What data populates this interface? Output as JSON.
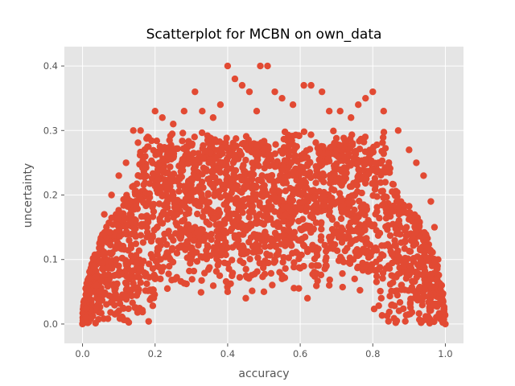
{
  "chart_data": {
    "type": "scatter",
    "title": "Scatterplot for MCBN on own_data",
    "xlabel": "accuracy",
    "ylabel": "uncertainty",
    "xlim": [
      -0.05,
      1.05
    ],
    "ylim": [
      -0.03,
      0.43
    ],
    "xticks": [
      0.0,
      0.2,
      0.4,
      0.6,
      0.8,
      1.0
    ],
    "xtick_labels": [
      "0.0",
      "0.2",
      "0.4",
      "0.6",
      "0.8",
      "1.0"
    ],
    "yticks": [
      0.0,
      0.1,
      0.2,
      0.3,
      0.4
    ],
    "ytick_labels": [
      "0.0",
      "0.1",
      "0.2",
      "0.3",
      "0.4"
    ],
    "grid": true,
    "style": "ggplot",
    "colors": {
      "marker": "#E24A33",
      "plot_background": "#E5E5E5",
      "grid": "#FFFFFF"
    },
    "series": [
      {
        "values": [
          [
            0.0,
            0.0
          ],
          [
            0.01,
            0.01
          ],
          [
            0.02,
            0.05
          ],
          [
            0.03,
            0.09
          ],
          [
            0.05,
            0.13
          ],
          [
            0.06,
            0.17
          ],
          [
            0.08,
            0.2
          ],
          [
            0.1,
            0.23
          ],
          [
            0.12,
            0.25
          ],
          [
            0.14,
            0.3
          ],
          [
            0.16,
            0.3
          ],
          [
            0.18,
            0.29
          ],
          [
            0.2,
            0.33
          ],
          [
            0.22,
            0.32
          ],
          [
            0.25,
            0.31
          ],
          [
            0.28,
            0.33
          ],
          [
            0.31,
            0.36
          ],
          [
            0.33,
            0.33
          ],
          [
            0.36,
            0.32
          ],
          [
            0.38,
            0.34
          ],
          [
            0.4,
            0.4
          ],
          [
            0.42,
            0.38
          ],
          [
            0.44,
            0.37
          ],
          [
            0.46,
            0.36
          ],
          [
            0.48,
            0.33
          ],
          [
            0.49,
            0.4
          ],
          [
            0.51,
            0.4
          ],
          [
            0.53,
            0.36
          ],
          [
            0.55,
            0.35
          ],
          [
            0.58,
            0.34
          ],
          [
            0.61,
            0.37
          ],
          [
            0.63,
            0.37
          ],
          [
            0.66,
            0.36
          ],
          [
            0.68,
            0.33
          ],
          [
            0.71,
            0.33
          ],
          [
            0.74,
            0.32
          ],
          [
            0.76,
            0.34
          ],
          [
            0.78,
            0.35
          ],
          [
            0.8,
            0.36
          ],
          [
            0.83,
            0.33
          ],
          [
            0.87,
            0.3
          ],
          [
            0.9,
            0.27
          ],
          [
            0.92,
            0.25
          ],
          [
            0.94,
            0.23
          ],
          [
            0.96,
            0.19
          ],
          [
            0.97,
            0.15
          ],
          [
            0.98,
            0.1
          ],
          [
            0.99,
            0.06
          ],
          [
            1.0,
            0.0
          ],
          [
            0.3,
            0.1
          ],
          [
            0.4,
            0.05
          ],
          [
            0.45,
            0.04
          ],
          [
            0.5,
            0.05
          ],
          [
            0.55,
            0.07
          ],
          [
            0.62,
            0.04
          ],
          [
            0.68,
            0.06
          ],
          [
            0.75,
            0.07
          ],
          [
            0.2,
            0.07
          ]
        ]
      }
    ]
  }
}
